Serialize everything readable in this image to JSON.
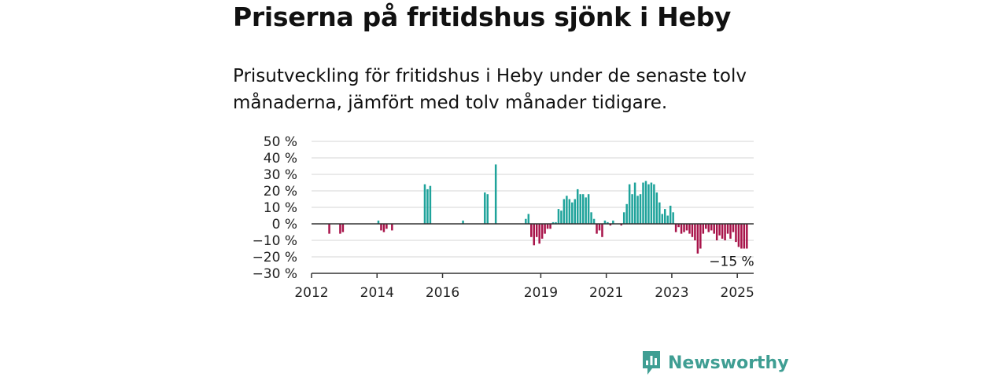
{
  "title": "Priserna på fritidshus sjönk i Heby",
  "subtitle": "Prisutveckling för fritidshus i Heby under de senaste tolv månaderna, jämfört med tolv månader tidigare.",
  "brand": {
    "name": "Newsworthy",
    "icon": "newsworthy-logo-icon",
    "color": "#3f9e93"
  },
  "colors": {
    "positive": "#1fa39b",
    "negative": "#a8144a",
    "grid": "#d6d6d6",
    "axis": "#333333"
  },
  "annotation": {
    "text": "−15 %"
  },
  "chart_data": {
    "type": "bar",
    "title": "Priserna på fritidshus sjönk i Heby",
    "subtitle": "Prisutveckling för fritidshus i Heby under de senaste tolv månaderna, jämfört med tolv månader tidigare.",
    "unit": "%",
    "ylim": [
      -30,
      50
    ],
    "yticks": [
      50,
      40,
      30,
      20,
      10,
      0,
      -10,
      -20,
      -30
    ],
    "ytick_labels": [
      "50 %",
      "40 %",
      "30 %",
      "20 %",
      "10 %",
      "0 %",
      "−10 %",
      "−20 %",
      "−30 %"
    ],
    "xlim": [
      "2012-01",
      "2025-07"
    ],
    "xticks": [
      2012,
      2014,
      2016,
      2019,
      2021,
      2023,
      2025
    ],
    "xtick_labels": [
      "2012",
      "2014",
      "2016",
      "2019",
      "2021",
      "2023",
      "2025"
    ],
    "grid": true,
    "legend": "none",
    "last_value_label": "−15 %",
    "points": [
      {
        "date": "2012-07",
        "value": -6
      },
      {
        "date": "2012-11",
        "value": -6
      },
      {
        "date": "2012-12",
        "value": -5
      },
      {
        "date": "2014-01",
        "value": 2
      },
      {
        "date": "2014-02",
        "value": -4
      },
      {
        "date": "2014-03",
        "value": -5
      },
      {
        "date": "2014-04",
        "value": -3
      },
      {
        "date": "2014-06",
        "value": -4
      },
      {
        "date": "2015-06",
        "value": 24
      },
      {
        "date": "2015-07",
        "value": 21
      },
      {
        "date": "2015-08",
        "value": 23
      },
      {
        "date": "2016-08",
        "value": 2
      },
      {
        "date": "2017-04",
        "value": 19
      },
      {
        "date": "2017-05",
        "value": 18
      },
      {
        "date": "2017-08",
        "value": 36
      },
      {
        "date": "2018-07",
        "value": 3
      },
      {
        "date": "2018-08",
        "value": 6
      },
      {
        "date": "2018-09",
        "value": -8
      },
      {
        "date": "2018-10",
        "value": -13
      },
      {
        "date": "2018-11",
        "value": -8
      },
      {
        "date": "2018-12",
        "value": -12
      },
      {
        "date": "2019-01",
        "value": -9
      },
      {
        "date": "2019-02",
        "value": -6
      },
      {
        "date": "2019-03",
        "value": -3
      },
      {
        "date": "2019-04",
        "value": -3
      },
      {
        "date": "2019-05",
        "value": 1
      },
      {
        "date": "2019-06",
        "value": 1
      },
      {
        "date": "2019-07",
        "value": 9
      },
      {
        "date": "2019-08",
        "value": 8
      },
      {
        "date": "2019-09",
        "value": 15
      },
      {
        "date": "2019-10",
        "value": 17
      },
      {
        "date": "2019-11",
        "value": 15
      },
      {
        "date": "2019-12",
        "value": 13
      },
      {
        "date": "2020-01",
        "value": 15
      },
      {
        "date": "2020-02",
        "value": 21
      },
      {
        "date": "2020-03",
        "value": 18
      },
      {
        "date": "2020-04",
        "value": 18
      },
      {
        "date": "2020-05",
        "value": 16
      },
      {
        "date": "2020-06",
        "value": 18
      },
      {
        "date": "2020-07",
        "value": 7
      },
      {
        "date": "2020-08",
        "value": 3
      },
      {
        "date": "2020-09",
        "value": -6
      },
      {
        "date": "2020-10",
        "value": -4
      },
      {
        "date": "2020-11",
        "value": -8
      },
      {
        "date": "2020-12",
        "value": 2
      },
      {
        "date": "2021-01",
        "value": 1
      },
      {
        "date": "2021-02",
        "value": -1
      },
      {
        "date": "2021-03",
        "value": 2
      },
      {
        "date": "2021-06",
        "value": -1
      },
      {
        "date": "2021-07",
        "value": 7
      },
      {
        "date": "2021-08",
        "value": 12
      },
      {
        "date": "2021-09",
        "value": 24
      },
      {
        "date": "2021-10",
        "value": 18
      },
      {
        "date": "2021-11",
        "value": 25
      },
      {
        "date": "2021-12",
        "value": 17
      },
      {
        "date": "2022-01",
        "value": 18
      },
      {
        "date": "2022-02",
        "value": 25
      },
      {
        "date": "2022-03",
        "value": 26
      },
      {
        "date": "2022-04",
        "value": 24
      },
      {
        "date": "2022-05",
        "value": 25
      },
      {
        "date": "2022-06",
        "value": 24
      },
      {
        "date": "2022-07",
        "value": 19
      },
      {
        "date": "2022-08",
        "value": 13
      },
      {
        "date": "2022-09",
        "value": 6
      },
      {
        "date": "2022-10",
        "value": 9
      },
      {
        "date": "2022-11",
        "value": 5
      },
      {
        "date": "2022-12",
        "value": 11
      },
      {
        "date": "2023-01",
        "value": 7
      },
      {
        "date": "2023-02",
        "value": -5
      },
      {
        "date": "2023-03",
        "value": -2
      },
      {
        "date": "2023-04",
        "value": -6
      },
      {
        "date": "2023-05",
        "value": -5
      },
      {
        "date": "2023-06",
        "value": -4
      },
      {
        "date": "2023-07",
        "value": -6
      },
      {
        "date": "2023-08",
        "value": -8
      },
      {
        "date": "2023-09",
        "value": -10
      },
      {
        "date": "2023-10",
        "value": -18
      },
      {
        "date": "2023-11",
        "value": -15
      },
      {
        "date": "2023-12",
        "value": -6
      },
      {
        "date": "2024-01",
        "value": -3
      },
      {
        "date": "2024-02",
        "value": -5
      },
      {
        "date": "2024-03",
        "value": -4
      },
      {
        "date": "2024-04",
        "value": -6
      },
      {
        "date": "2024-05",
        "value": -10
      },
      {
        "date": "2024-06",
        "value": -7
      },
      {
        "date": "2024-07",
        "value": -9
      },
      {
        "date": "2024-08",
        "value": -10
      },
      {
        "date": "2024-09",
        "value": -6
      },
      {
        "date": "2024-10",
        "value": -9
      },
      {
        "date": "2024-11",
        "value": -5
      },
      {
        "date": "2024-12",
        "value": -11
      },
      {
        "date": "2025-01",
        "value": -14
      },
      {
        "date": "2025-02",
        "value": -15
      },
      {
        "date": "2025-03",
        "value": -15
      },
      {
        "date": "2025-04",
        "value": -15
      }
    ]
  }
}
